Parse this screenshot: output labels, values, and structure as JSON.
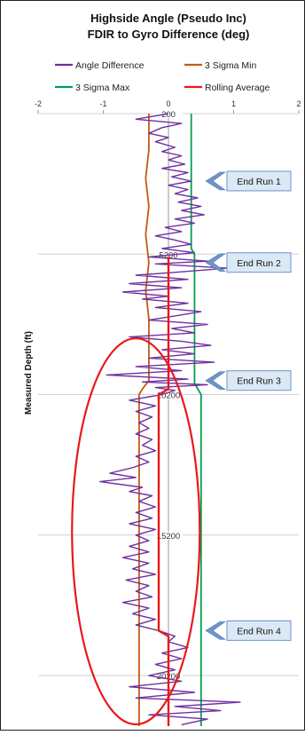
{
  "chart_data": {
    "type": "line",
    "title_line1": "Highside Angle (Pseudo Inc)",
    "title_line2": "FDIR to Gyro Difference (deg)",
    "xlabel": "",
    "ylabel": "Measured Depth (ft)",
    "xlim": [
      -2,
      2
    ],
    "ylim": [
      200,
      22000
    ],
    "y_reversed": true,
    "x_ticks": [
      -2,
      -1,
      0,
      1,
      2
    ],
    "y_ticks": [
      200,
      5200,
      10200,
      15200,
      20200
    ],
    "x_grid": false,
    "y_grid": true,
    "legend_position": "top",
    "legend": [
      {
        "name": "Angle Difference",
        "color": "#7030a0"
      },
      {
        "name": "3 Sigma Min",
        "color": "#c55a11"
      },
      {
        "name": "3 Sigma Max",
        "color": "#00a050"
      },
      {
        "name": "Rolling Average",
        "color": "#e8191b"
      }
    ],
    "series": [
      {
        "name": "Angle Difference",
        "color": "#7030a0",
        "points": [
          [
            0.0,
            200
          ],
          [
            -0.5,
            400
          ],
          [
            0.2,
            550
          ],
          [
            -0.1,
            700
          ],
          [
            -0.3,
            900
          ],
          [
            0.0,
            1050
          ],
          [
            -0.2,
            1200
          ],
          [
            0.1,
            1400
          ],
          [
            -0.1,
            1550
          ],
          [
            0.2,
            1700
          ],
          [
            0.0,
            1850
          ],
          [
            0.25,
            2000
          ],
          [
            -0.1,
            2150
          ],
          [
            0.3,
            2300
          ],
          [
            0.05,
            2450
          ],
          [
            0.35,
            2600
          ],
          [
            0.0,
            2750
          ],
          [
            0.3,
            2900
          ],
          [
            0.1,
            3050
          ],
          [
            0.45,
            3200
          ],
          [
            0.15,
            3350
          ],
          [
            0.5,
            3500
          ],
          [
            0.2,
            3650
          ],
          [
            0.55,
            3800
          ],
          [
            0.1,
            3950
          ],
          [
            0.4,
            4100
          ],
          [
            -0.05,
            4250
          ],
          [
            0.2,
            4400
          ],
          [
            -0.2,
            4550
          ],
          [
            0.1,
            4700
          ],
          [
            0.35,
            4850
          ],
          [
            -0.1,
            5000
          ],
          [
            0.4,
            5150
          ],
          [
            -0.3,
            5300
          ],
          [
            0.6,
            5450
          ],
          [
            -0.2,
            5550
          ],
          [
            0.9,
            5700
          ],
          [
            0.1,
            5850
          ],
          [
            -0.5,
            5950
          ],
          [
            0.3,
            6100
          ],
          [
            -0.6,
            6250
          ],
          [
            0.2,
            6400
          ],
          [
            -0.7,
            6550
          ],
          [
            0.0,
            6700
          ],
          [
            -0.4,
            6800
          ],
          [
            0.3,
            6950
          ],
          [
            -0.2,
            7100
          ],
          [
            0.5,
            7250
          ],
          [
            0.1,
            7400
          ],
          [
            -0.3,
            7550
          ],
          [
            0.6,
            7700
          ],
          [
            0.05,
            7850
          ],
          [
            0.4,
            8000
          ],
          [
            -0.6,
            8150
          ],
          [
            0.2,
            8300
          ],
          [
            0.65,
            8450
          ],
          [
            -0.1,
            8600
          ],
          [
            0.4,
            8750
          ],
          [
            -0.3,
            8900
          ],
          [
            0.7,
            9050
          ],
          [
            -0.5,
            9200
          ],
          [
            0.2,
            9350
          ],
          [
            -0.95,
            9500
          ],
          [
            0.3,
            9650
          ],
          [
            -0.4,
            9750
          ],
          [
            0.6,
            9850
          ],
          [
            -0.2,
            9950
          ],
          [
            0.1,
            10050
          ],
          [
            -0.1,
            10200
          ],
          [
            -0.6,
            10400
          ],
          [
            -0.2,
            10600
          ],
          [
            -0.5,
            10800
          ],
          [
            -0.25,
            11000
          ],
          [
            -0.45,
            11200
          ],
          [
            -0.3,
            11400
          ],
          [
            -0.5,
            11600
          ],
          [
            -0.25,
            11800
          ],
          [
            -0.4,
            12000
          ],
          [
            -0.2,
            12200
          ],
          [
            -0.5,
            12400
          ],
          [
            -0.3,
            12600
          ],
          [
            -0.55,
            12800
          ],
          [
            -0.9,
            13000
          ],
          [
            -0.5,
            13150
          ],
          [
            -1.05,
            13300
          ],
          [
            -0.4,
            13500
          ],
          [
            -0.6,
            13650
          ],
          [
            -0.25,
            13800
          ],
          [
            -0.45,
            14000
          ],
          [
            -0.2,
            14200
          ],
          [
            -0.5,
            14400
          ],
          [
            -0.25,
            14600
          ],
          [
            -0.6,
            14800
          ],
          [
            -0.2,
            15000
          ],
          [
            -0.5,
            15200
          ],
          [
            -0.3,
            15400
          ],
          [
            -0.6,
            15600
          ],
          [
            -0.3,
            15800
          ],
          [
            -0.7,
            16000
          ],
          [
            -0.3,
            16200
          ],
          [
            -0.55,
            16400
          ],
          [
            -0.2,
            16600
          ],
          [
            -0.65,
            16800
          ],
          [
            -0.3,
            17000
          ],
          [
            -0.5,
            17200
          ],
          [
            -0.25,
            17400
          ],
          [
            -0.7,
            17600
          ],
          [
            -0.3,
            17800
          ],
          [
            -0.55,
            18000
          ],
          [
            -0.2,
            18200
          ],
          [
            -0.5,
            18400
          ],
          [
            -0.15,
            18600
          ],
          [
            0.1,
            18800
          ],
          [
            0.0,
            19000
          ],
          [
            0.3,
            19200
          ],
          [
            -0.1,
            19400
          ],
          [
            0.2,
            19600
          ],
          [
            -0.2,
            19800
          ],
          [
            0.1,
            20000
          ],
          [
            -0.3,
            20200
          ],
          [
            0.2,
            20400
          ],
          [
            -0.6,
            20600
          ],
          [
            0.4,
            20800
          ],
          [
            -0.5,
            21000
          ],
          [
            1.1,
            21150
          ],
          [
            0.1,
            21300
          ],
          [
            0.8,
            21450
          ],
          [
            -0.3,
            21600
          ],
          [
            0.6,
            21750
          ],
          [
            0.2,
            21950
          ]
        ]
      },
      {
        "name": "3 Sigma Min",
        "color": "#c55a11",
        "points": [
          [
            -0.3,
            200
          ],
          [
            -0.3,
            1500
          ],
          [
            -0.35,
            2500
          ],
          [
            -0.3,
            3500
          ],
          [
            -0.35,
            4500
          ],
          [
            -0.3,
            5500
          ],
          [
            -0.35,
            6500
          ],
          [
            -0.3,
            7500
          ],
          [
            -0.3,
            9000
          ],
          [
            -0.3,
            9700
          ],
          [
            -0.4,
            10000
          ],
          [
            -0.45,
            10200
          ],
          [
            -0.45,
            12000
          ],
          [
            -0.45,
            14000
          ],
          [
            -0.45,
            16000
          ],
          [
            -0.45,
            18000
          ],
          [
            -0.45,
            20000
          ],
          [
            -0.45,
            22000
          ]
        ]
      },
      {
        "name": "3 Sigma Max",
        "color": "#00a050",
        "points": [
          [
            0.35,
            200
          ],
          [
            0.35,
            2000
          ],
          [
            0.35,
            4000
          ],
          [
            0.35,
            5000
          ],
          [
            0.4,
            5200
          ],
          [
            0.4,
            9000
          ],
          [
            0.4,
            9800
          ],
          [
            0.5,
            10200
          ],
          [
            0.5,
            14000
          ],
          [
            0.5,
            18000
          ],
          [
            0.5,
            20000
          ],
          [
            0.5,
            22000
          ]
        ]
      },
      {
        "name": "Rolling Average",
        "color": "#e8191b",
        "points": [
          [
            0.0,
            5300
          ],
          [
            0.0,
            7000
          ],
          [
            0.0,
            9000
          ],
          [
            0.0,
            10000
          ],
          [
            -0.15,
            10200
          ],
          [
            -0.15,
            12000
          ],
          [
            -0.15,
            14000
          ],
          [
            -0.15,
            16000
          ],
          [
            -0.15,
            18000
          ],
          [
            -0.15,
            18600
          ],
          [
            0.0,
            18800
          ],
          [
            0.0,
            20000
          ],
          [
            0.0,
            22000
          ]
        ]
      }
    ],
    "annotations": [
      {
        "label": "End Run 1",
        "depth": 2600
      },
      {
        "label": "End Run 2",
        "depth": 5500
      },
      {
        "label": "End Run 3",
        "depth": 9700
      },
      {
        "label": "End Run 4",
        "depth": 18600
      }
    ],
    "highlight_ellipse": {
      "color": "#e8191b",
      "x_center": -0.5,
      "x_half_width": 0.98,
      "depth_top": 8200,
      "depth_bottom": 22000
    }
  }
}
